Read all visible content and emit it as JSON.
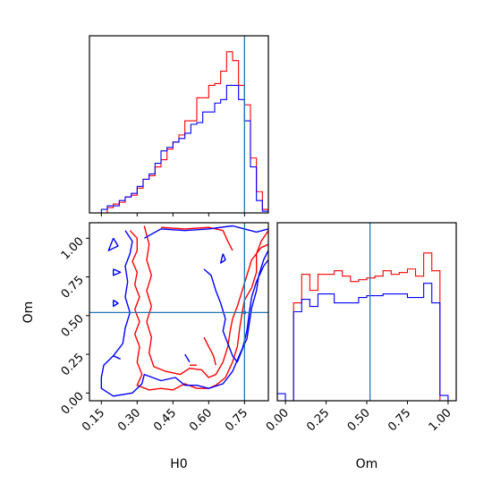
{
  "chart_data": {
    "type": "corner",
    "parameters": [
      "H0",
      "Om"
    ],
    "truth": {
      "H0": 0.75,
      "Om": 0.52
    },
    "series": [
      {
        "color": "#ff0000"
      },
      {
        "color": "#0000ff"
      }
    ],
    "truth_color": "#1f77b4",
    "panels": [
      {
        "kind": "histogram",
        "param": "H0",
        "xlim": [
          0.1,
          0.85
        ],
        "ylim": [
          0,
          1.0
        ],
        "bin_edges": [
          0.1,
          0.125,
          0.15,
          0.175,
          0.2,
          0.225,
          0.25,
          0.275,
          0.3,
          0.325,
          0.35,
          0.375,
          0.4,
          0.425,
          0.45,
          0.475,
          0.5,
          0.525,
          0.55,
          0.575,
          0.6,
          0.625,
          0.65,
          0.675,
          0.7,
          0.725,
          0.75,
          0.775,
          0.8,
          0.825,
          0.85
        ],
        "counts": [
          [
            0.0,
            0.0,
            0.0,
            0.03,
            0.05,
            0.06,
            0.09,
            0.1,
            0.14,
            0.19,
            0.21,
            0.26,
            0.3,
            0.36,
            0.4,
            0.44,
            0.52,
            0.52,
            0.65,
            0.65,
            0.72,
            0.73,
            0.8,
            0.91,
            0.86,
            0.72,
            0.61,
            0.31,
            0.12,
            0.02
          ],
          [
            0.0,
            0.0,
            0.02,
            0.04,
            0.04,
            0.07,
            0.09,
            0.11,
            0.15,
            0.19,
            0.22,
            0.28,
            0.35,
            0.37,
            0.4,
            0.42,
            0.45,
            0.5,
            0.51,
            0.57,
            0.57,
            0.62,
            0.64,
            0.72,
            0.72,
            0.64,
            0.52,
            0.26,
            0.07,
            0.01
          ]
        ],
        "ticks": [],
        "xlabel": ""
      },
      {
        "kind": "histogram",
        "param": "Om",
        "xlim": [
          -0.05,
          1.05
        ],
        "ylim": [
          0,
          1.0
        ],
        "bin_edges": [
          -0.05,
          0.0,
          0.05,
          0.1,
          0.15,
          0.2,
          0.25,
          0.3,
          0.35,
          0.4,
          0.45,
          0.5,
          0.55,
          0.6,
          0.65,
          0.7,
          0.75,
          0.8,
          0.85,
          0.9,
          0.95,
          1.0,
          1.05
        ],
        "counts": [
          [
            0.0,
            0.0,
            0.55,
            0.71,
            0.62,
            0.71,
            0.71,
            0.73,
            0.7,
            0.67,
            0.68,
            0.69,
            0.7,
            0.73,
            0.71,
            0.72,
            0.74,
            0.7,
            0.83,
            0.73,
            0.0,
            0.0
          ],
          [
            0.04,
            0.0,
            0.5,
            0.57,
            0.53,
            0.6,
            0.6,
            0.55,
            0.55,
            0.55,
            0.58,
            0.59,
            0.59,
            0.6,
            0.6,
            0.6,
            0.58,
            0.58,
            0.66,
            0.55,
            0.03,
            0.0
          ]
        ],
        "ticks": [
          "0.00",
          "0.25",
          "0.50",
          "0.75",
          "1.00"
        ],
        "tick_values": [
          0.0,
          0.25,
          0.5,
          0.75,
          1.0
        ],
        "xlabel": "Om"
      },
      {
        "kind": "contour",
        "x": "H0",
        "y": "Om",
        "xlim": [
          0.1,
          0.85
        ],
        "ylim": [
          -0.05,
          1.1
        ],
        "xticks": [
          "0.15",
          "0.30",
          "0.45",
          "0.60",
          "0.75"
        ],
        "xtick_values": [
          0.15,
          0.3,
          0.45,
          0.6,
          0.75
        ],
        "yticks": [
          "0.00",
          "0.25",
          "0.50",
          "0.75",
          "1.00"
        ],
        "ytick_values": [
          0.0,
          0.25,
          0.5,
          0.75,
          1.0
        ],
        "xlabel": "H0",
        "ylabel": "Om",
        "contours": [
          {
            "series": 0,
            "points": [
              [
                0.27,
                1.05
              ],
              [
                0.3,
                1.0
              ],
              [
                0.3,
                0.92
              ],
              [
                0.28,
                0.85
              ],
              [
                0.3,
                0.78
              ],
              [
                0.29,
                0.7
              ],
              [
                0.31,
                0.62
              ],
              [
                0.29,
                0.54
              ],
              [
                0.31,
                0.46
              ],
              [
                0.29,
                0.38
              ],
              [
                0.31,
                0.3
              ],
              [
                0.3,
                0.2
              ],
              [
                0.32,
                0.12
              ],
              [
                0.3,
                0.05
              ],
              [
                0.35,
                0.02
              ],
              [
                0.4,
                0.03
              ],
              [
                0.45,
                0.02
              ],
              [
                0.5,
                0.06
              ],
              [
                0.55,
                0.03
              ],
              [
                0.6,
                0.03
              ],
              [
                0.63,
                0.05
              ],
              [
                0.67,
                0.1
              ],
              [
                0.7,
                0.2
              ],
              [
                0.72,
                0.3
              ],
              [
                0.73,
                0.42
              ],
              [
                0.74,
                0.52
              ],
              [
                0.75,
                0.6
              ],
              [
                0.78,
                0.68
              ],
              [
                0.8,
                0.78
              ],
              [
                0.8,
                0.9
              ],
              [
                0.82,
                0.98
              ],
              [
                0.85,
                1.05
              ]
            ]
          },
          {
            "series": 0,
            "points": [
              [
                0.33,
                1.08
              ],
              [
                0.35,
                0.96
              ],
              [
                0.34,
                0.86
              ],
              [
                0.36,
                0.76
              ],
              [
                0.34,
                0.66
              ],
              [
                0.36,
                0.56
              ],
              [
                0.34,
                0.46
              ],
              [
                0.36,
                0.36
              ],
              [
                0.35,
                0.26
              ],
              [
                0.37,
                0.17
              ],
              [
                0.42,
                0.14
              ],
              [
                0.48,
                0.12
              ],
              [
                0.52,
                0.16
              ],
              [
                0.57,
                0.15
              ],
              [
                0.6,
                0.1
              ],
              [
                0.63,
                0.12
              ],
              [
                0.66,
                0.2
              ],
              [
                0.68,
                0.3
              ],
              [
                0.69,
                0.4
              ],
              [
                0.7,
                0.48
              ],
              [
                0.72,
                0.56
              ],
              [
                0.74,
                0.66
              ],
              [
                0.76,
                0.76
              ],
              [
                0.78,
                0.86
              ],
              [
                0.82,
                0.94
              ],
              [
                0.85,
                0.96
              ]
            ]
          },
          {
            "series": 0,
            "points": [
              [
                0.4,
                1.07
              ],
              [
                0.5,
                1.06
              ],
              [
                0.6,
                1.07
              ],
              [
                0.66,
                1.05
              ],
              [
                0.68,
                0.98
              ],
              [
                0.7,
                0.92
              ]
            ]
          },
          {
            "series": 0,
            "points": [
              [
                0.58,
                0.36
              ],
              [
                0.6,
                0.3
              ],
              [
                0.62,
                0.24
              ],
              [
                0.63,
                0.18
              ]
            ]
          },
          {
            "series": 0,
            "points": [
              [
                0.52,
                0.18
              ],
              [
                0.55,
                0.18
              ]
            ]
          },
          {
            "series": 1,
            "points": [
              [
                0.25,
                1.05
              ],
              [
                0.28,
                0.98
              ],
              [
                0.27,
                0.9
              ],
              [
                0.25,
                0.82
              ],
              [
                0.26,
                0.72
              ],
              [
                0.25,
                0.62
              ],
              [
                0.27,
                0.52
              ],
              [
                0.25,
                0.42
              ],
              [
                0.24,
                0.32
              ],
              [
                0.2,
                0.24
              ],
              [
                0.16,
                0.18
              ],
              [
                0.15,
                0.1
              ],
              [
                0.15,
                0.03
              ],
              [
                0.2,
                -0.02
              ],
              [
                0.28,
                0.0
              ],
              [
                0.32,
                0.06
              ],
              [
                0.33,
                0.12
              ],
              [
                0.4,
                0.08
              ],
              [
                0.46,
                0.1
              ],
              [
                0.5,
                0.05
              ],
              [
                0.55,
                0.05
              ],
              [
                0.6,
                0.03
              ],
              [
                0.66,
                0.06
              ],
              [
                0.7,
                0.14
              ],
              [
                0.73,
                0.25
              ],
              [
                0.76,
                0.35
              ],
              [
                0.77,
                0.45
              ],
              [
                0.78,
                0.55
              ],
              [
                0.8,
                0.66
              ],
              [
                0.81,
                0.76
              ],
              [
                0.83,
                0.86
              ],
              [
                0.85,
                0.92
              ]
            ]
          },
          {
            "series": 1,
            "points": [
              [
                0.33,
                1.0
              ],
              [
                0.4,
                1.06
              ],
              [
                0.5,
                1.05
              ],
              [
                0.6,
                1.06
              ],
              [
                0.7,
                1.08
              ],
              [
                0.8,
                1.04
              ],
              [
                0.85,
                1.06
              ]
            ]
          },
          {
            "series": 1,
            "points": [
              [
                0.58,
                0.8
              ],
              [
                0.61,
                0.76
              ],
              [
                0.63,
                0.66
              ],
              [
                0.65,
                0.58
              ],
              [
                0.67,
                0.48
              ],
              [
                0.66,
                0.4
              ],
              [
                0.68,
                0.32
              ],
              [
                0.7,
                0.24
              ],
              [
                0.72,
                0.2
              ],
              [
                0.74,
                0.28
              ],
              [
                0.76,
                0.4
              ],
              [
                0.77,
                0.52
              ],
              [
                0.78,
                0.62
              ],
              [
                0.8,
                0.72
              ],
              [
                0.83,
                0.82
              ],
              [
                0.85,
                0.86
              ]
            ]
          },
          {
            "series": 1,
            "points": [
              [
                0.2,
                1.0
              ],
              [
                0.22,
                0.95
              ],
              [
                0.18,
                0.92
              ],
              [
                0.2,
                1.0
              ]
            ]
          },
          {
            "series": 1,
            "points": [
              [
                0.2,
                0.8
              ],
              [
                0.23,
                0.78
              ],
              [
                0.2,
                0.76
              ],
              [
                0.2,
                0.8
              ]
            ]
          },
          {
            "series": 1,
            "points": [
              [
                0.2,
                0.6
              ],
              [
                0.22,
                0.58
              ],
              [
                0.2,
                0.56
              ],
              [
                0.2,
                0.6
              ]
            ]
          },
          {
            "series": 1,
            "points": [
              [
                0.66,
                0.9
              ],
              [
                0.67,
                0.86
              ],
              [
                0.65,
                0.84
              ],
              [
                0.66,
                0.9
              ]
            ]
          },
          {
            "series": 1,
            "points": [
              [
                0.5,
                0.25
              ],
              [
                0.52,
                0.2
              ]
            ]
          },
          {
            "series": 1,
            "points": [
              [
                0.2,
                0.24
              ],
              [
                0.23,
                0.22
              ]
            ]
          }
        ]
      }
    ]
  }
}
